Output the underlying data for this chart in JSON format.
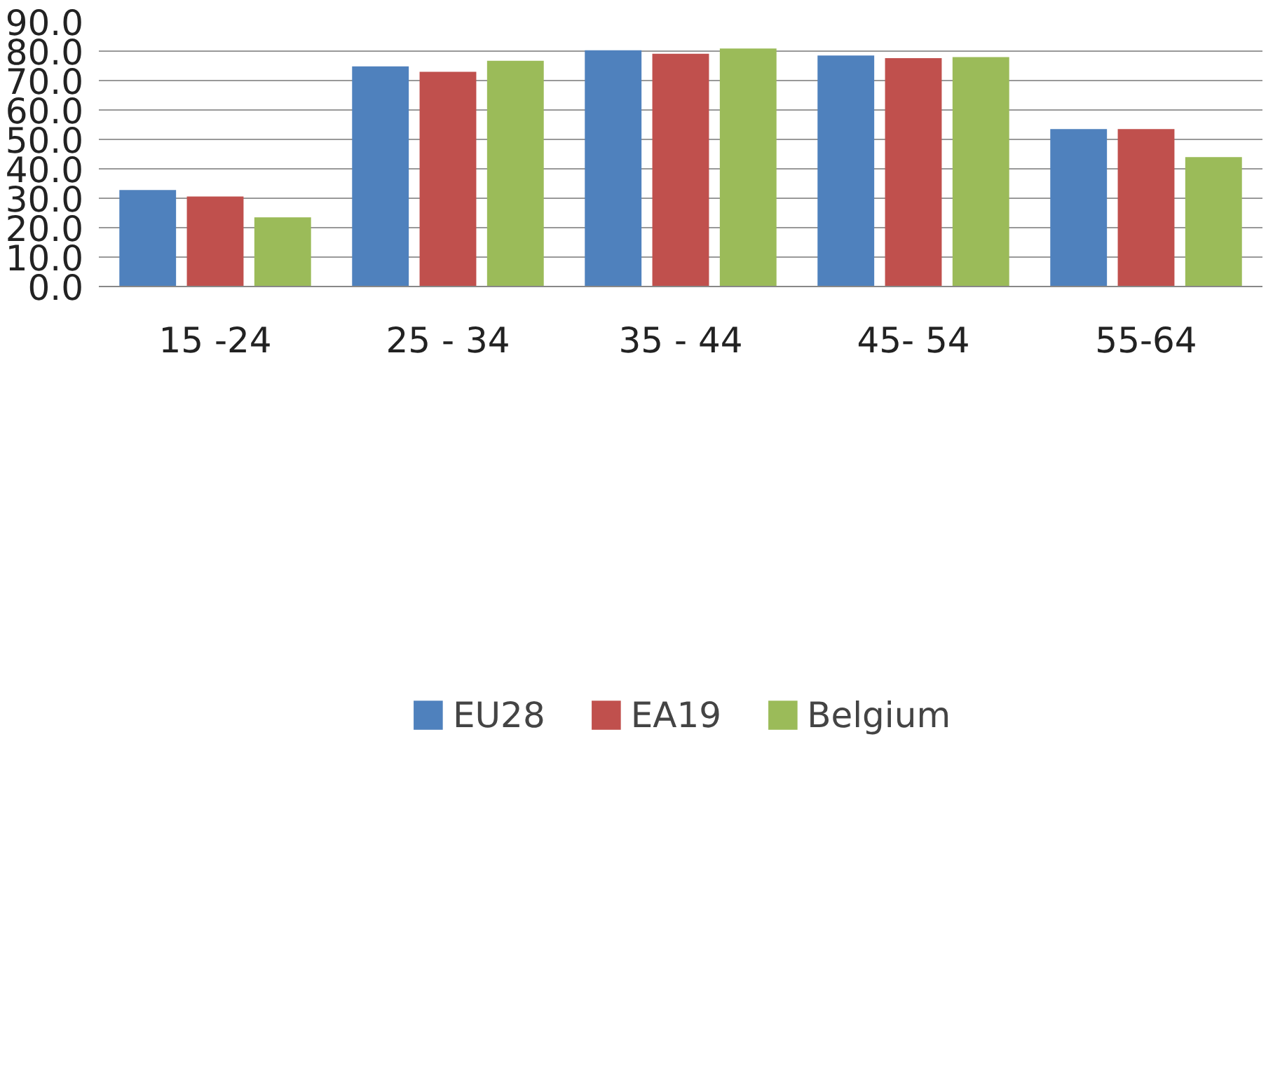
{
  "chart_data": {
    "type": "bar",
    "categories": [
      "15 -24",
      "25 - 34",
      "35 - 44",
      "45- 54",
      "55-64"
    ],
    "series": [
      {
        "name": "EU28",
        "color": "#4f81bd",
        "values": [
          32.8,
          74.8,
          80.3,
          78.5,
          53.5
        ]
      },
      {
        "name": "EA19",
        "color": "#c0504d",
        "values": [
          30.6,
          73.0,
          79.1,
          77.6,
          53.5
        ]
      },
      {
        "name": "Belgium",
        "color": "#9bbb59",
        "values": [
          23.5,
          76.7,
          80.9,
          78.0,
          44.0
        ]
      }
    ],
    "ylim": [
      0,
      90
    ],
    "yticks": [
      {
        "value": 0,
        "label": "0.0"
      },
      {
        "value": 10,
        "label": "10.0"
      },
      {
        "value": 20,
        "label": "20.0"
      },
      {
        "value": 30,
        "label": "30.0"
      },
      {
        "value": 40,
        "label": "40.0"
      },
      {
        "value": 50,
        "label": "50.0"
      },
      {
        "value": 60,
        "label": "60.0"
      },
      {
        "value": 70,
        "label": "70.0"
      },
      {
        "value": 80,
        "label": "80.0"
      },
      {
        "value": 90,
        "label": "90.0"
      }
    ],
    "grid": "y",
    "legend": "bottom"
  }
}
